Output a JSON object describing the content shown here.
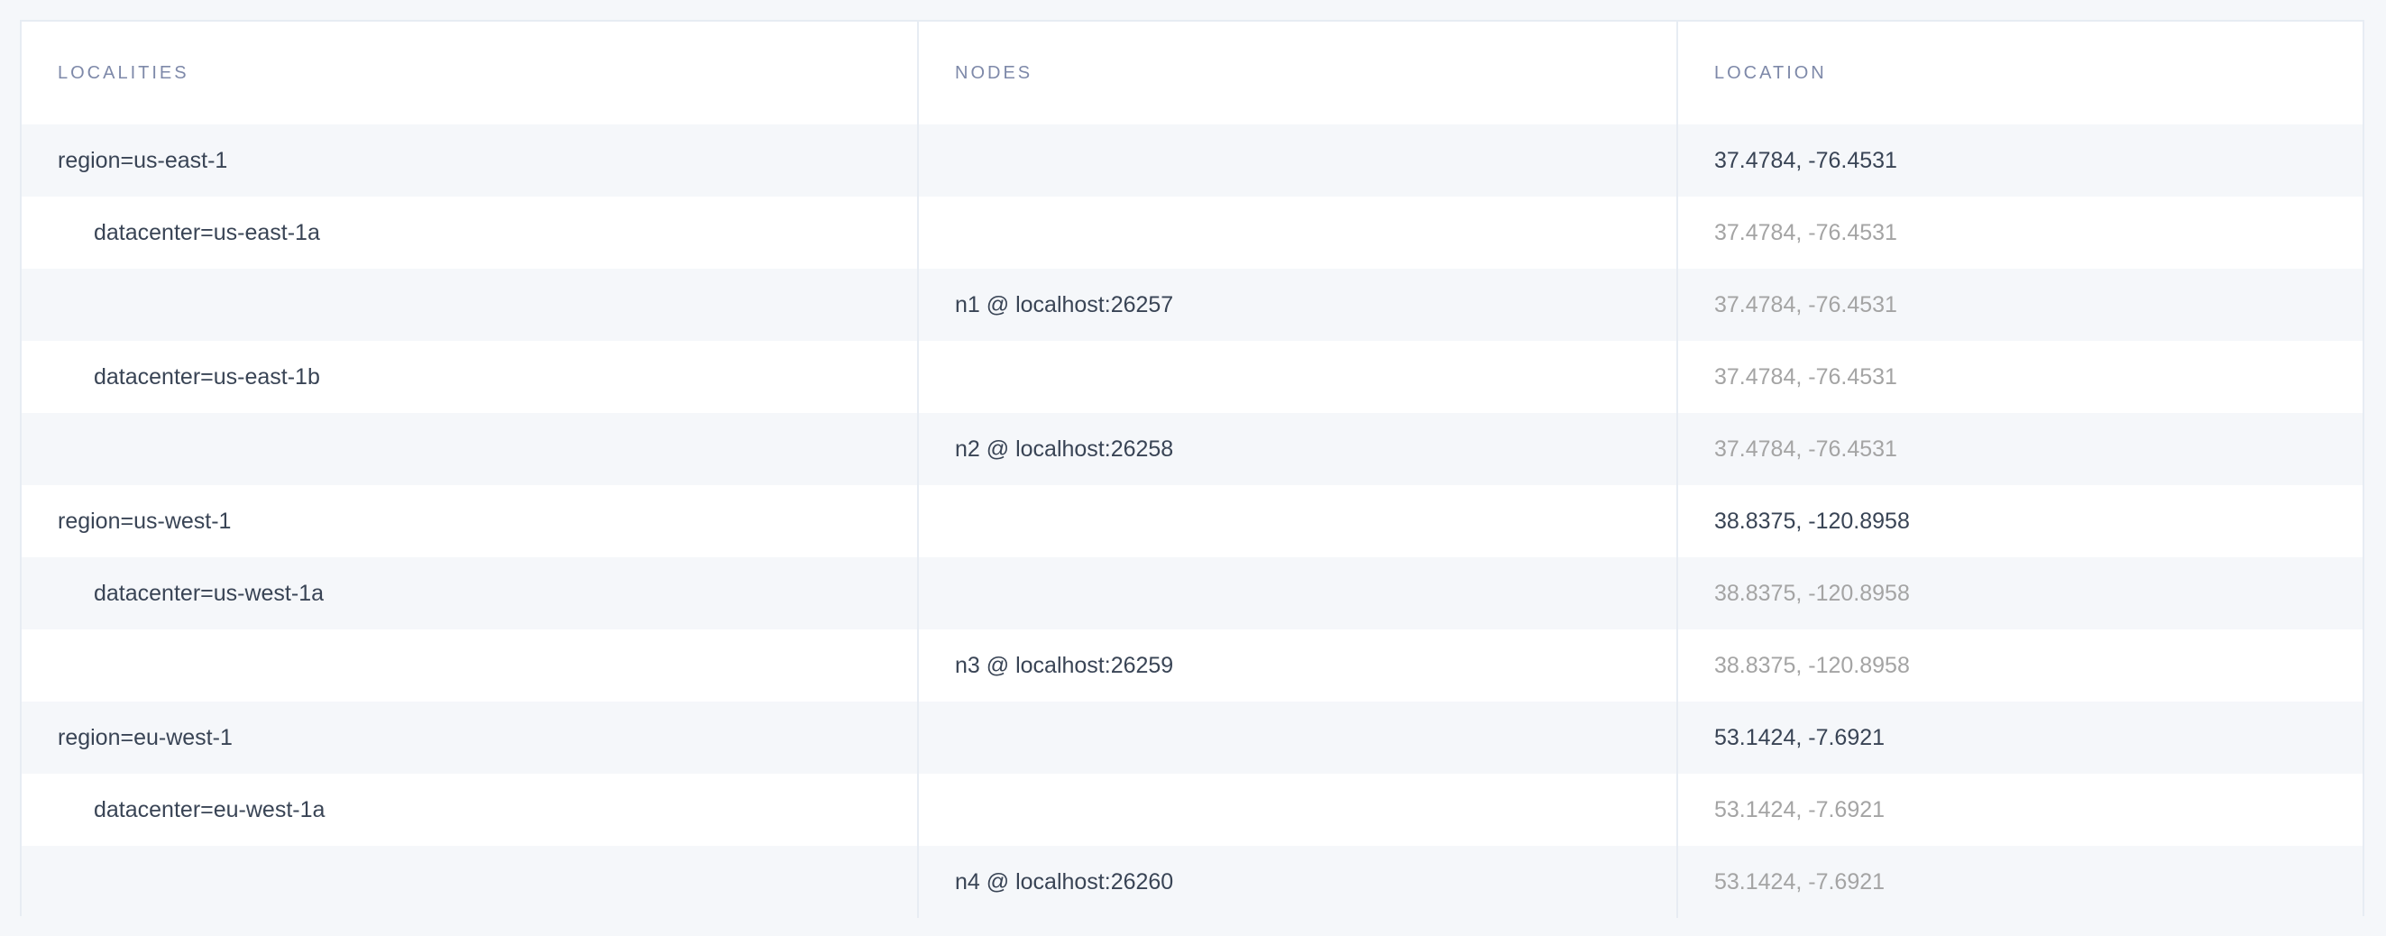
{
  "table": {
    "columns": [
      "LOCALITIES",
      "NODES",
      "LOCATION"
    ],
    "rows": [
      {
        "locality": "region=us-east-1",
        "level": 0,
        "node": "",
        "location": "37.4784, -76.4531"
      },
      {
        "locality": "datacenter=us-east-1a",
        "level": 1,
        "node": "",
        "location": "37.4784, -76.4531"
      },
      {
        "locality": "",
        "level": 2,
        "node": "n1 @ localhost:26257",
        "location": "37.4784, -76.4531"
      },
      {
        "locality": "datacenter=us-east-1b",
        "level": 1,
        "node": "",
        "location": "37.4784, -76.4531"
      },
      {
        "locality": "",
        "level": 2,
        "node": "n2 @ localhost:26258",
        "location": "37.4784, -76.4531"
      },
      {
        "locality": "region=us-west-1",
        "level": 0,
        "node": "",
        "location": "38.8375, -120.8958"
      },
      {
        "locality": "datacenter=us-west-1a",
        "level": 1,
        "node": "",
        "location": "38.8375, -120.8958"
      },
      {
        "locality": "",
        "level": 2,
        "node": "n3 @ localhost:26259",
        "location": "38.8375, -120.8958"
      },
      {
        "locality": "region=eu-west-1",
        "level": 0,
        "node": "",
        "location": "53.1424, -7.6921"
      },
      {
        "locality": "datacenter=eu-west-1a",
        "level": 1,
        "node": "",
        "location": "53.1424, -7.6921"
      },
      {
        "locality": "",
        "level": 2,
        "node": "n4 @ localhost:26260",
        "location": "53.1424, -7.6921"
      }
    ]
  }
}
